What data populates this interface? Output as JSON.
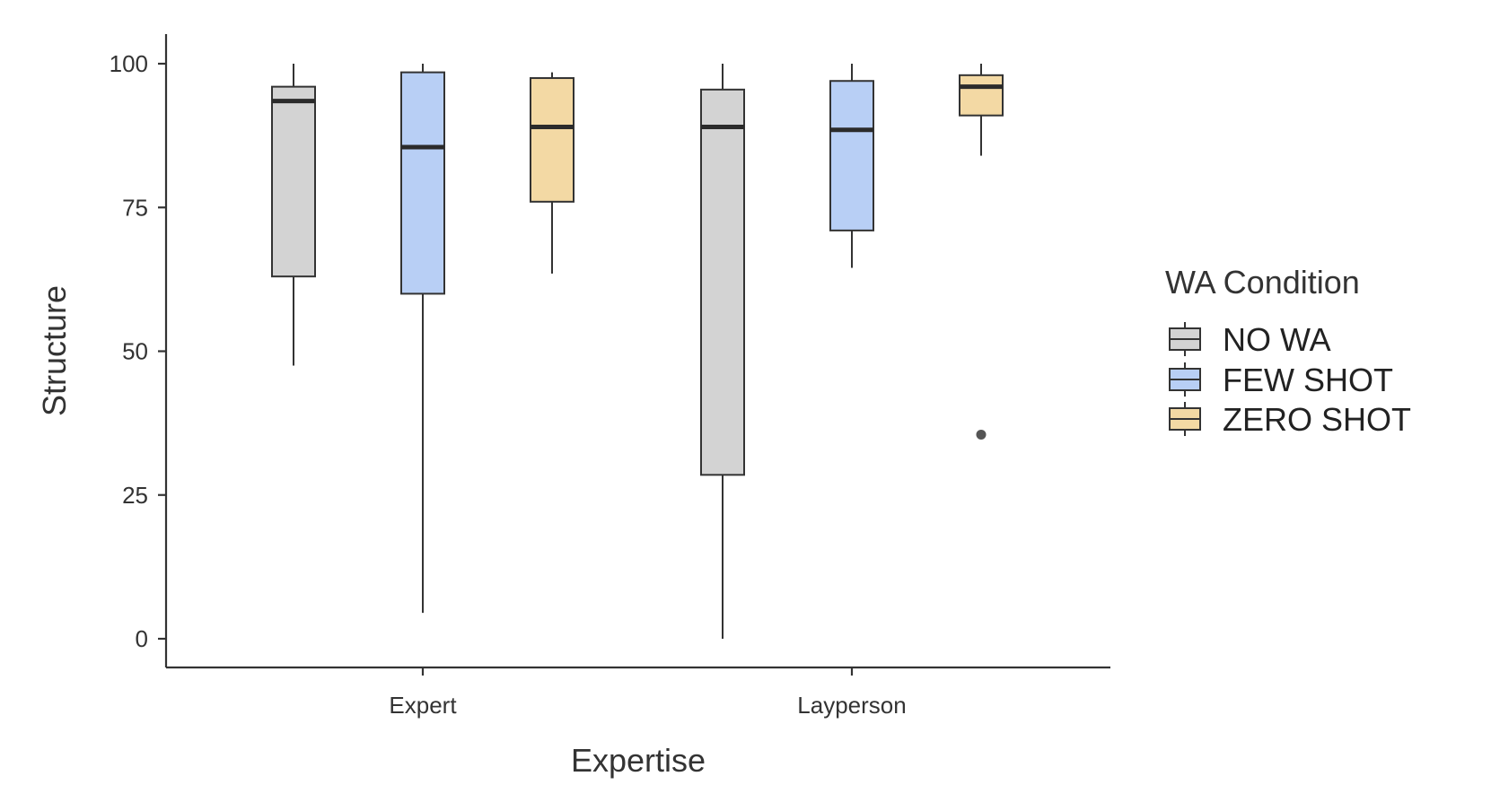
{
  "chart_data": {
    "type": "boxplot",
    "xlabel": "Expertise",
    "ylabel": "Structure",
    "categories": [
      "Expert",
      "Layperson"
    ],
    "yticks": [
      0,
      25,
      50,
      75,
      100
    ],
    "ytick_labels": [
      "0",
      "25",
      "50",
      "75",
      "100"
    ],
    "ylim": [
      -5,
      105
    ],
    "legend": {
      "title": "WA Condition",
      "placement": "right"
    },
    "grid": false,
    "series": [
      {
        "name": "NO WA",
        "color": "#d3d3d3",
        "boxes": [
          {
            "category": "Expert",
            "min": 47.5,
            "q1": 63,
            "median": 93.5,
            "q3": 96,
            "max": 100,
            "outliers": []
          },
          {
            "category": "Layperson",
            "min": 0,
            "q1": 28.5,
            "median": 89,
            "q3": 95.5,
            "max": 100,
            "outliers": []
          }
        ]
      },
      {
        "name": "FEW SHOT",
        "color": "#b8cff5",
        "boxes": [
          {
            "category": "Expert",
            "min": 4.5,
            "q1": 60,
            "median": 85.5,
            "q3": 98.5,
            "max": 100,
            "outliers": []
          },
          {
            "category": "Layperson",
            "min": 64.5,
            "q1": 71,
            "median": 88.5,
            "q3": 97,
            "max": 100,
            "outliers": []
          }
        ]
      },
      {
        "name": "ZERO SHOT",
        "color": "#f3d9a4",
        "boxes": [
          {
            "category": "Expert",
            "min": 63.5,
            "q1": 76,
            "median": 89,
            "q3": 97.5,
            "max": 98.5,
            "outliers": []
          },
          {
            "category": "Layperson",
            "min": 84,
            "q1": 91,
            "median": 96,
            "q3": 98,
            "max": 100,
            "outliers": [
              35.5
            ]
          }
        ]
      }
    ]
  }
}
